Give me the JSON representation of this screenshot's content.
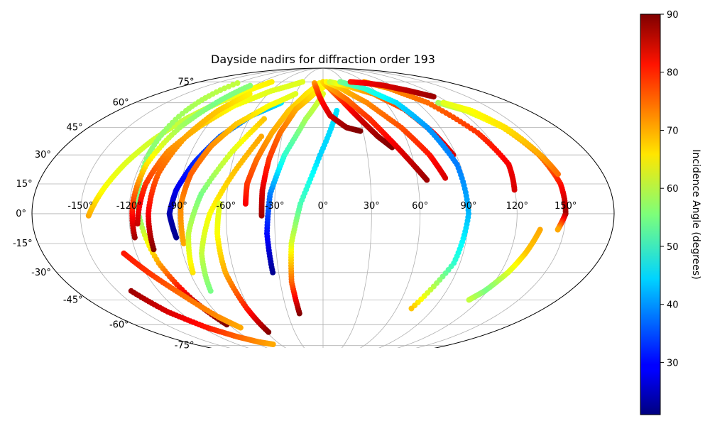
{
  "chart_data": {
    "type": "scatter",
    "projection": "mollweide",
    "title": "Dayside nadirs for diffraction order 193",
    "lon_ticks": [
      -150,
      -120,
      -90,
      -60,
      -30,
      0,
      30,
      60,
      90,
      120,
      150
    ],
    "lat_ticks": [
      -75,
      -60,
      -45,
      -30,
      -15,
      0,
      15,
      30,
      45,
      60,
      75
    ],
    "lon_tick_labels": [
      "-150°",
      "-120°",
      "-90°",
      "-60°",
      "-30°",
      "0°",
      "30°",
      "60°",
      "90°",
      "120°",
      "150°"
    ],
    "lat_tick_labels": [
      "-75°",
      "-60°",
      "-45°",
      "-30°",
      "-15°",
      "0°",
      "15°",
      "30°",
      "45°",
      "60°",
      "75°"
    ],
    "grid": true,
    "colorbar": {
      "label": "Incidence Angle (degrees)",
      "colormap": "jet",
      "range": [
        21,
        90
      ],
      "ticks": [
        30,
        40,
        50,
        60,
        70,
        80,
        90
      ],
      "tick_labels": [
        "30",
        "40",
        "50",
        "60",
        "70",
        "80",
        "90"
      ],
      "position": "right"
    },
    "tracks": [
      {
        "lon": [
          -145,
          -138,
          -130,
          -122,
          -112,
          -100,
          -88,
          -75
        ],
        "lat": [
          -1,
          12,
          26,
          38,
          50,
          60,
          68,
          75
        ],
        "incidence": [
          70,
          64,
          62,
          61,
          60,
          62,
          64,
          65
        ]
      },
      {
        "lon": [
          -120,
          -120,
          -118,
          -114,
          -108,
          -100,
          -92
        ],
        "lat": [
          74,
          55,
          30,
          0,
          -25,
          -45,
          -60
        ],
        "incidence": [
          60,
          58,
          56,
          55,
          70,
          85,
          90
        ]
      },
      {
        "lon": [
          -118,
          -118,
          -116,
          -110,
          -102,
          -95
        ],
        "lat": [
          -12,
          5,
          25,
          45,
          60,
          72
        ],
        "incidence": [
          88,
          78,
          66,
          58,
          55,
          56
        ]
      },
      {
        "lon": [
          -115,
          -112,
          -106,
          -95,
          -82,
          -60,
          -30
        ],
        "lat": [
          -5,
          15,
          32,
          46,
          58,
          68,
          75
        ],
        "incidence": [
          85,
          78,
          72,
          68,
          64,
          62,
          62
        ]
      },
      {
        "lon": [
          -108,
          -108,
          -106,
          -100,
          -92,
          -80
        ],
        "lat": [
          -18,
          0,
          20,
          40,
          55,
          66
        ],
        "incidence": [
          90,
          82,
          75,
          70,
          68,
          65
        ]
      },
      {
        "lon": [
          -92,
          -95,
          -92,
          -85,
          -75,
          -60,
          -40
        ],
        "lat": [
          -12,
          0,
          12,
          26,
          40,
          52,
          60
        ],
        "incidence": [
          22,
          24,
          28,
          32,
          36,
          40,
          45
        ]
      },
      {
        "lon": [
          -88,
          -88,
          -85,
          -78,
          -68,
          -50,
          -30
        ],
        "lat": [
          -15,
          5,
          20,
          35,
          47,
          58,
          66
        ],
        "incidence": [
          70,
          72,
          75,
          72,
          68,
          64,
          62
        ]
      },
      {
        "lon": [
          -88,
          -84,
          -76,
          -62,
          -48
        ],
        "lat": [
          -30,
          -10,
          10,
          32,
          50
        ],
        "incidence": [
          66,
          60,
          55,
          62,
          68
        ]
      },
      {
        "lon": [
          -82,
          -78,
          -70,
          -58,
          -45
        ],
        "lat": [
          -40,
          -20,
          0,
          20,
          40
        ],
        "incidence": [
          55,
          60,
          64,
          68,
          70
        ]
      },
      {
        "lon": [
          -58,
          -62,
          -66,
          -66,
          -64
        ],
        "lat": [
          -65,
          -50,
          -30,
          -10,
          5
        ],
        "incidence": [
          90,
          80,
          70,
          64,
          62
        ]
      },
      {
        "lon": [
          -48,
          -48,
          -44,
          -38,
          -30,
          -18,
          -5
        ],
        "lat": [
          5,
          15,
          28,
          42,
          55,
          66,
          74
        ],
        "incidence": [
          82,
          78,
          74,
          70,
          68,
          66,
          64
        ]
      },
      {
        "lon": [
          -38,
          -38,
          -36,
          -32,
          -24,
          -10,
          5
        ],
        "lat": [
          -1,
          12,
          28,
          42,
          56,
          66,
          73
        ],
        "incidence": [
          88,
          84,
          78,
          74,
          70,
          66,
          64
        ]
      },
      {
        "lon": [
          -34,
          -35,
          -33,
          -26,
          -14,
          0
        ],
        "lat": [
          -30,
          -10,
          10,
          30,
          50,
          66
        ],
        "incidence": [
          22,
          30,
          38,
          50,
          58,
          62
        ]
      },
      {
        "lon": [
          -20,
          -22,
          -20,
          -14,
          -2,
          12
        ],
        "lat": [
          -53,
          -35,
          -15,
          5,
          30,
          55
        ],
        "incidence": [
          90,
          75,
          62,
          52,
          44,
          45
        ]
      },
      {
        "lon": [
          -12,
          -8,
          -2,
          6,
          18,
          28
        ],
        "lat": [
          74,
          70,
          62,
          52,
          45,
          43
        ],
        "incidence": [
          70,
          75,
          80,
          84,
          88,
          90
        ]
      },
      {
        "lon": [
          0,
          8,
          18,
          30,
          40,
          48
        ],
        "lat": [
          75,
          70,
          62,
          50,
          40,
          34
        ],
        "incidence": [
          68,
          72,
          78,
          84,
          88,
          90
        ]
      },
      {
        "lon": [
          0,
          10,
          24,
          38,
          50,
          60,
          66
        ],
        "lat": [
          75,
          70,
          62,
          50,
          36,
          24,
          17
        ],
        "incidence": [
          66,
          70,
          74,
          78,
          82,
          86,
          88
        ]
      },
      {
        "lon": [
          5,
          22,
          42,
          60,
          72,
          78
        ],
        "lat": [
          75,
          70,
          60,
          45,
          30,
          18
        ],
        "incidence": [
          64,
          68,
          72,
          76,
          80,
          84
        ]
      },
      {
        "lon": [
          10,
          30,
          55,
          72,
          82,
          88
        ],
        "lat": [
          75,
          72,
          66,
          56,
          42,
          30
        ],
        "incidence": [
          60,
          66,
          72,
          78,
          82,
          84
        ]
      },
      {
        "lon": [
          25,
          50,
          70,
          80,
          88,
          90,
          86,
          72
        ],
        "lat": [
          75,
          70,
          60,
          45,
          25,
          0,
          -25,
          -50
        ],
        "incidence": [
          55,
          50,
          45,
          40,
          38,
          42,
          50,
          68
        ]
      },
      {
        "lon": [
          60,
          80,
          100,
          115,
          122,
          120
        ],
        "lat": [
          75,
          70,
          60,
          42,
          25,
          12
        ],
        "incidence": [
          70,
          72,
          74,
          78,
          82,
          84
        ]
      },
      {
        "lon": [
          40,
          60,
          80,
          100,
          115
        ],
        "lat": [
          75,
          74,
          72,
          68,
          64
        ],
        "incidence": [
          80,
          82,
          84,
          86,
          88
        ]
      },
      {
        "lon": [
          110,
          125,
          138,
          146,
          150,
          150,
          146
        ],
        "lat": [
          60,
          55,
          45,
          30,
          15,
          0,
          -8
        ],
        "incidence": [
          58,
          62,
          66,
          72,
          80,
          88,
          70
        ]
      },
      {
        "lon": [
          115,
          130,
          140,
          147,
          151
        ],
        "lat": [
          60,
          55,
          45,
          30,
          20
        ],
        "incidence": [
          62,
          64,
          66,
          70,
          74
        ]
      },
      {
        "lon": [
          135,
          130,
          125,
          118,
          112
        ],
        "lat": [
          -8,
          -20,
          -30,
          -40,
          -45
        ],
        "incidence": [
          70,
          68,
          62,
          55,
          60
        ]
      },
      {
        "lon": [
          -140,
          -130,
          -115,
          -100,
          -85,
          -70
        ],
        "lat": [
          -40,
          -52,
          -62,
          -68,
          -72,
          -74
        ],
        "incidence": [
          88,
          84,
          80,
          75,
          72,
          70
        ]
      },
      {
        "lon": [
          -128,
          -118,
          -105,
          -92,
          -82
        ],
        "lat": [
          -20,
          -30,
          -42,
          -55,
          -62
        ],
        "incidence": [
          80,
          78,
          74,
          72,
          70
        ]
      }
    ]
  }
}
